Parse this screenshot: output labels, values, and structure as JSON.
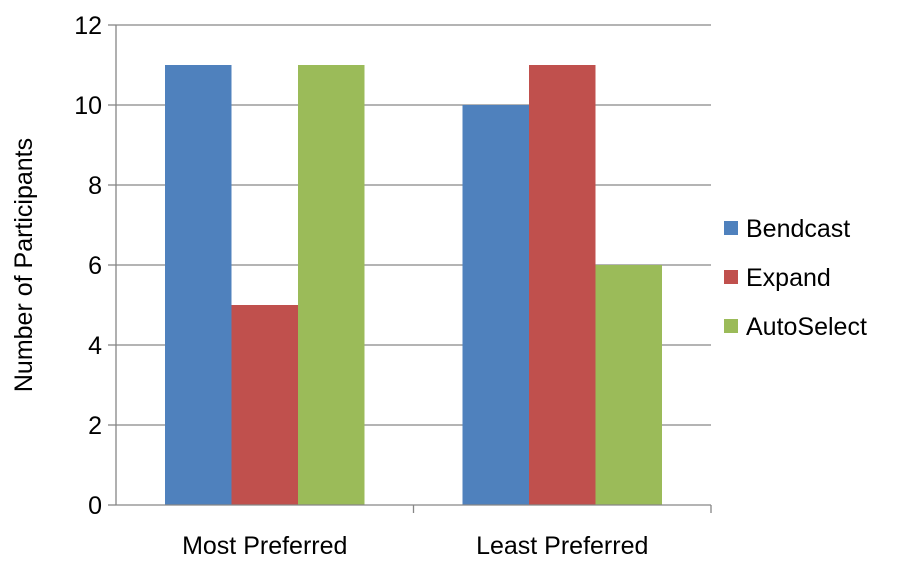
{
  "chart_data": {
    "type": "bar",
    "categories": [
      "Most Preferred",
      "Least Preferred"
    ],
    "series": [
      {
        "name": "Bendcast",
        "values": [
          11,
          10
        ],
        "color": "#4F81BD"
      },
      {
        "name": "Expand",
        "values": [
          5,
          11
        ],
        "color": "#C0504D"
      },
      {
        "name": "AutoSelect",
        "values": [
          11,
          6
        ],
        "color": "#9BBB59"
      }
    ],
    "xlabel": "",
    "ylabel": "Number of Participants",
    "ylim": [
      0,
      12
    ],
    "yticks": [
      0,
      2,
      4,
      6,
      8,
      10,
      12
    ],
    "grid": true,
    "legend_position": "right"
  }
}
